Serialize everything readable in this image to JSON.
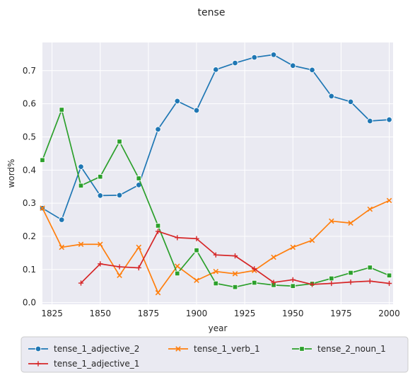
{
  "chart_data": {
    "type": "line",
    "title": "tense",
    "xlabel": "year",
    "ylabel": "word%",
    "xlim": [
      1820,
      2002
    ],
    "ylim": [
      -0.005,
      0.785
    ],
    "x_ticks": [
      1825,
      1850,
      1875,
      1900,
      1925,
      1950,
      1975,
      2000
    ],
    "y_ticks": [
      0.0,
      0.1,
      0.2,
      0.3,
      0.4,
      0.5,
      0.6,
      0.7
    ],
    "x_tick_labels": [
      "1825",
      "1850",
      "1875",
      "1900",
      "1925",
      "1950",
      "1975",
      "2000"
    ],
    "y_tick_labels": [
      "0.0",
      "0.1",
      "0.2",
      "0.3",
      "0.4",
      "0.5",
      "0.6",
      "0.7"
    ],
    "grid": true,
    "legend_position": "below",
    "series": [
      {
        "name": "tense_1_adjective_2",
        "color": "#1f77b4",
        "marker": "circle",
        "x": [
          1820,
          1830,
          1840,
          1850,
          1860,
          1870,
          1880,
          1890,
          1900,
          1910,
          1920,
          1930,
          1940,
          1950,
          1960,
          1970,
          1980,
          1990,
          2000
        ],
        "values": [
          0.285,
          0.25,
          0.41,
          0.323,
          0.324,
          0.355,
          0.523,
          0.608,
          0.58,
          0.703,
          0.723,
          0.74,
          0.748,
          0.715,
          0.702,
          0.623,
          0.606,
          0.548,
          0.552
        ]
      },
      {
        "name": "tense_1_verb_1",
        "color": "#ff7f0e",
        "marker": "x",
        "x": [
          1820,
          1830,
          1840,
          1850,
          1860,
          1870,
          1880,
          1890,
          1900,
          1910,
          1920,
          1930,
          1940,
          1950,
          1960,
          1970,
          1980,
          1990,
          2000
        ],
        "values": [
          0.285,
          0.167,
          0.176,
          0.176,
          0.082,
          0.167,
          0.03,
          0.11,
          0.067,
          0.094,
          0.087,
          0.097,
          0.137,
          0.167,
          0.188,
          0.246,
          0.24,
          0.282,
          0.308
        ]
      },
      {
        "name": "tense_2_noun_1",
        "color": "#2ca02c",
        "marker": "square",
        "x": [
          1820,
          1830,
          1840,
          1850,
          1860,
          1870,
          1880,
          1890,
          1900,
          1910,
          1920,
          1930,
          1940,
          1950,
          1960,
          1970,
          1980,
          1990,
          2000
        ],
        "values": [
          0.43,
          0.582,
          0.353,
          0.38,
          0.486,
          0.375,
          0.232,
          0.088,
          0.158,
          0.058,
          0.047,
          0.06,
          0.053,
          0.05,
          0.057,
          0.073,
          0.09,
          0.106,
          0.082
        ]
      },
      {
        "name": "tense_1_adjective_1",
        "color": "#d62728",
        "marker": "plus",
        "x": [
          1840,
          1850,
          1860,
          1870,
          1880,
          1890,
          1900,
          1910,
          1920,
          1930,
          1940,
          1950,
          1960,
          1970,
          1980,
          1990,
          2000
        ],
        "values": [
          0.059,
          0.117,
          0.108,
          0.105,
          0.215,
          0.196,
          0.193,
          0.144,
          0.141,
          0.102,
          0.061,
          0.069,
          0.055,
          0.058,
          0.062,
          0.065,
          0.058
        ]
      }
    ]
  }
}
